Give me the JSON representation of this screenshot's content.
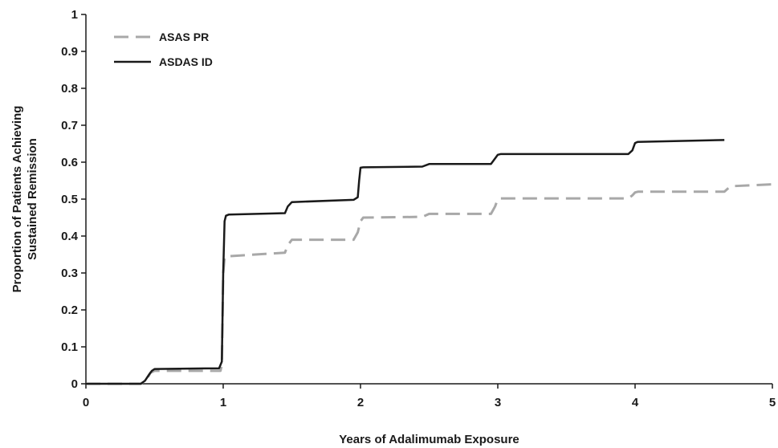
{
  "chart_data": {
    "type": "line",
    "title": "",
    "xlabel": "Years of Adalimumab Exposure",
    "ylabel_lines": [
      "Proportion of Patients Achieving",
      "Sustained Remission"
    ],
    "xlim": [
      0,
      5
    ],
    "ylim": [
      0,
      1
    ],
    "x_ticks": [
      "0",
      "1",
      "2",
      "3",
      "4",
      "5"
    ],
    "y_ticks": [
      "0",
      "0.1",
      "0.2",
      "0.3",
      "0.4",
      "0.5",
      "0.6",
      "0.7",
      "0.8",
      "0.9",
      "1"
    ],
    "grid": false,
    "legend_position": "top-left",
    "series": [
      {
        "name": "ASAS PR",
        "style": "dashed",
        "color": "#a8a8a8",
        "x": [
          0,
          0.4,
          0.44,
          0.47,
          0.5,
          0.98,
          0.99,
          1.0,
          1.01,
          1.02,
          1.45,
          1.47,
          1.5,
          1.95,
          1.98,
          2.0,
          2.02,
          2.45,
          2.5,
          2.95,
          2.98,
          3.0,
          3.02,
          3.95,
          3.98,
          4.0,
          4.02,
          4.65,
          4.68,
          4.7,
          5.0
        ],
        "y": [
          0,
          0,
          0.01,
          0.03,
          0.035,
          0.035,
          0.05,
          0.3,
          0.34,
          0.345,
          0.355,
          0.375,
          0.39,
          0.39,
          0.41,
          0.44,
          0.45,
          0.452,
          0.46,
          0.46,
          0.48,
          0.5,
          0.502,
          0.502,
          0.51,
          0.518,
          0.52,
          0.52,
          0.53,
          0.535,
          0.54
        ]
      },
      {
        "name": "ASDAS ID",
        "style": "solid",
        "color": "#1a1a1a",
        "x": [
          0,
          0.4,
          0.43,
          0.46,
          0.48,
          0.5,
          0.97,
          0.99,
          1.0,
          1.01,
          1.02,
          1.04,
          1.45,
          1.47,
          1.5,
          1.95,
          1.98,
          1.99,
          2.0,
          2.02,
          2.45,
          2.5,
          2.95,
          2.98,
          3.0,
          3.02,
          3.95,
          3.98,
          4.0,
          4.02,
          4.65
        ],
        "y": [
          0,
          0,
          0.008,
          0.025,
          0.035,
          0.04,
          0.042,
          0.06,
          0.3,
          0.44,
          0.455,
          0.458,
          0.462,
          0.48,
          0.492,
          0.498,
          0.505,
          0.55,
          0.585,
          0.586,
          0.588,
          0.595,
          0.595,
          0.61,
          0.62,
          0.622,
          0.622,
          0.632,
          0.652,
          0.655,
          0.66
        ]
      }
    ]
  }
}
